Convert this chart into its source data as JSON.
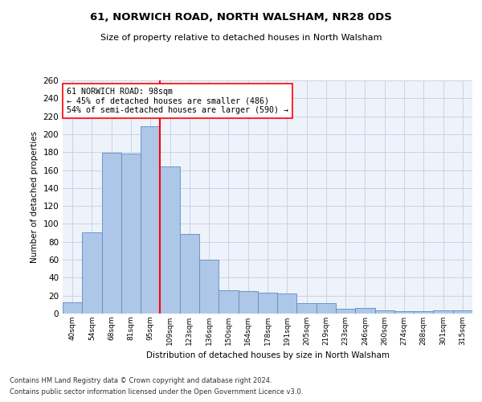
{
  "title1": "61, NORWICH ROAD, NORTH WALSHAM, NR28 0DS",
  "title2": "Size of property relative to detached houses in North Walsham",
  "xlabel": "Distribution of detached houses by size in North Walsham",
  "ylabel": "Number of detached properties",
  "bar_labels": [
    "40sqm",
    "54sqm",
    "68sqm",
    "81sqm",
    "95sqm",
    "109sqm",
    "123sqm",
    "136sqm",
    "150sqm",
    "164sqm",
    "178sqm",
    "191sqm",
    "205sqm",
    "219sqm",
    "233sqm",
    "246sqm",
    "260sqm",
    "274sqm",
    "288sqm",
    "301sqm",
    "315sqm"
  ],
  "bar_values": [
    13,
    91,
    179,
    178,
    209,
    164,
    89,
    60,
    26,
    25,
    23,
    22,
    12,
    12,
    5,
    6,
    4,
    3,
    3,
    4,
    4
  ],
  "bar_color": "#aec6e8",
  "bar_edge_color": "#5a8fc2",
  "vline_x": 4.5,
  "vline_color": "red",
  "annotation_text": "61 NORWICH ROAD: 98sqm\n← 45% of detached houses are smaller (486)\n54% of semi-detached houses are larger (590) →",
  "annotation_box_color": "white",
  "annotation_box_edge_color": "red",
  "ylim": [
    0,
    260
  ],
  "yticks": [
    0,
    20,
    40,
    60,
    80,
    100,
    120,
    140,
    160,
    180,
    200,
    220,
    240,
    260
  ],
  "footer1": "Contains HM Land Registry data © Crown copyright and database right 2024.",
  "footer2": "Contains public sector information licensed under the Open Government Licence v3.0.",
  "grid_color": "#c8d4e8",
  "bg_color": "#eef2fa"
}
